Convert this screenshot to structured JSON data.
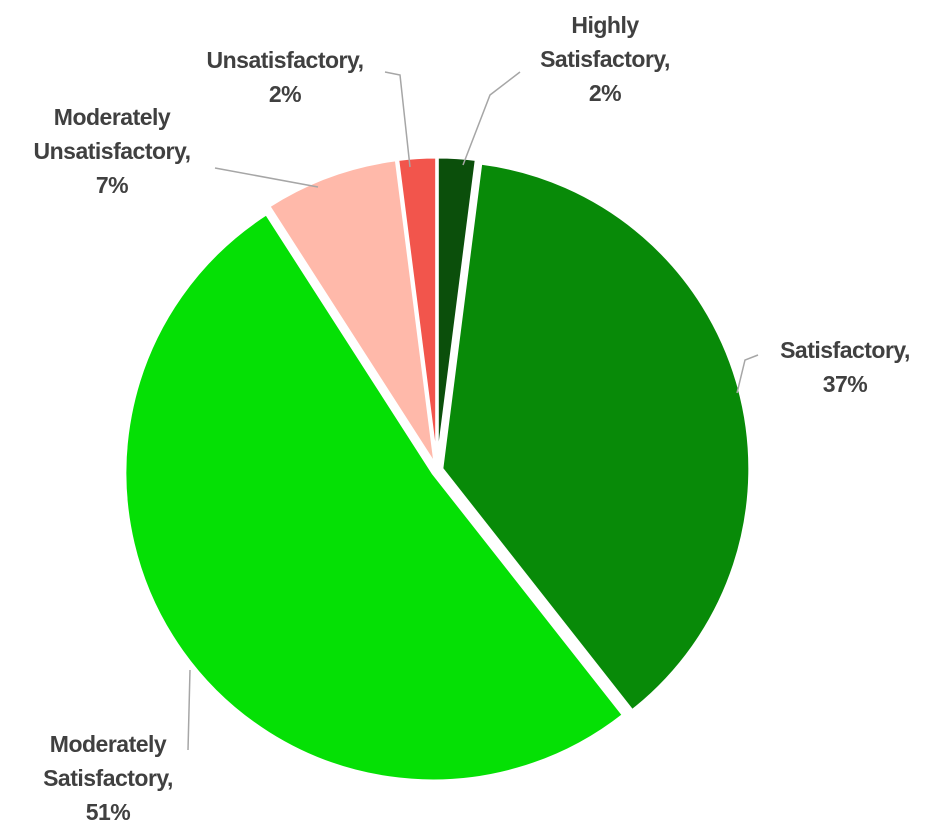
{
  "chart_data": {
    "type": "pie",
    "categories": [
      "Highly Satisfactory,",
      "Satisfactory,",
      "Moderately Satisfactory,",
      "Moderately Unsatisfactory,",
      "Unsatisfactory,"
    ],
    "values": [
      2,
      37,
      51,
      7,
      2
    ],
    "value_labels": [
      "2%",
      "37%",
      "51%",
      "7%",
      "2%"
    ],
    "colors": [
      "#0b4f0b",
      "#088a08",
      "#05e005",
      "#ffb9aa",
      "#f2554c"
    ]
  }
}
